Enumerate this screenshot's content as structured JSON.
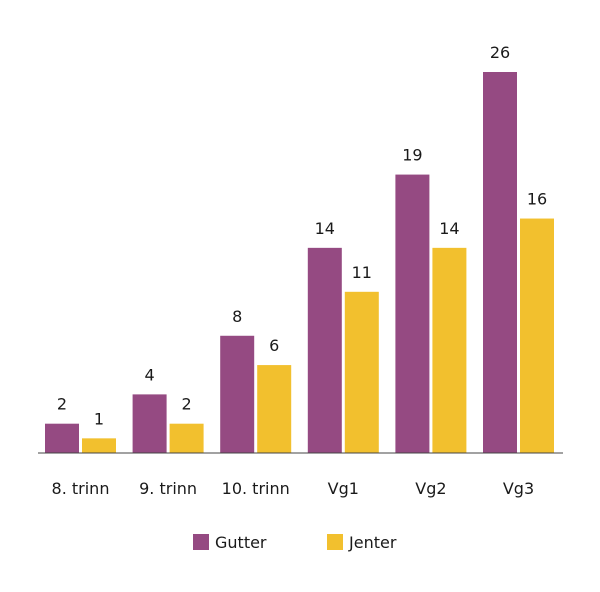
{
  "chart_data": {
    "type": "bar",
    "categories": [
      "8. trinn",
      "9. trinn",
      "10. trinn",
      "Vg1",
      "Vg2",
      "Vg3"
    ],
    "series": [
      {
        "name": "Gutter",
        "values": [
          2,
          4,
          8,
          14,
          19,
          26
        ],
        "color": "#954A82"
      },
      {
        "name": "Jenter",
        "values": [
          1,
          2,
          6,
          11,
          14,
          16
        ],
        "color": "#F2C02E"
      }
    ],
    "title": "",
    "xlabel": "",
    "ylabel": "",
    "ylim": [
      0,
      26
    ],
    "grid": false,
    "legend_position": "bottom-center"
  }
}
